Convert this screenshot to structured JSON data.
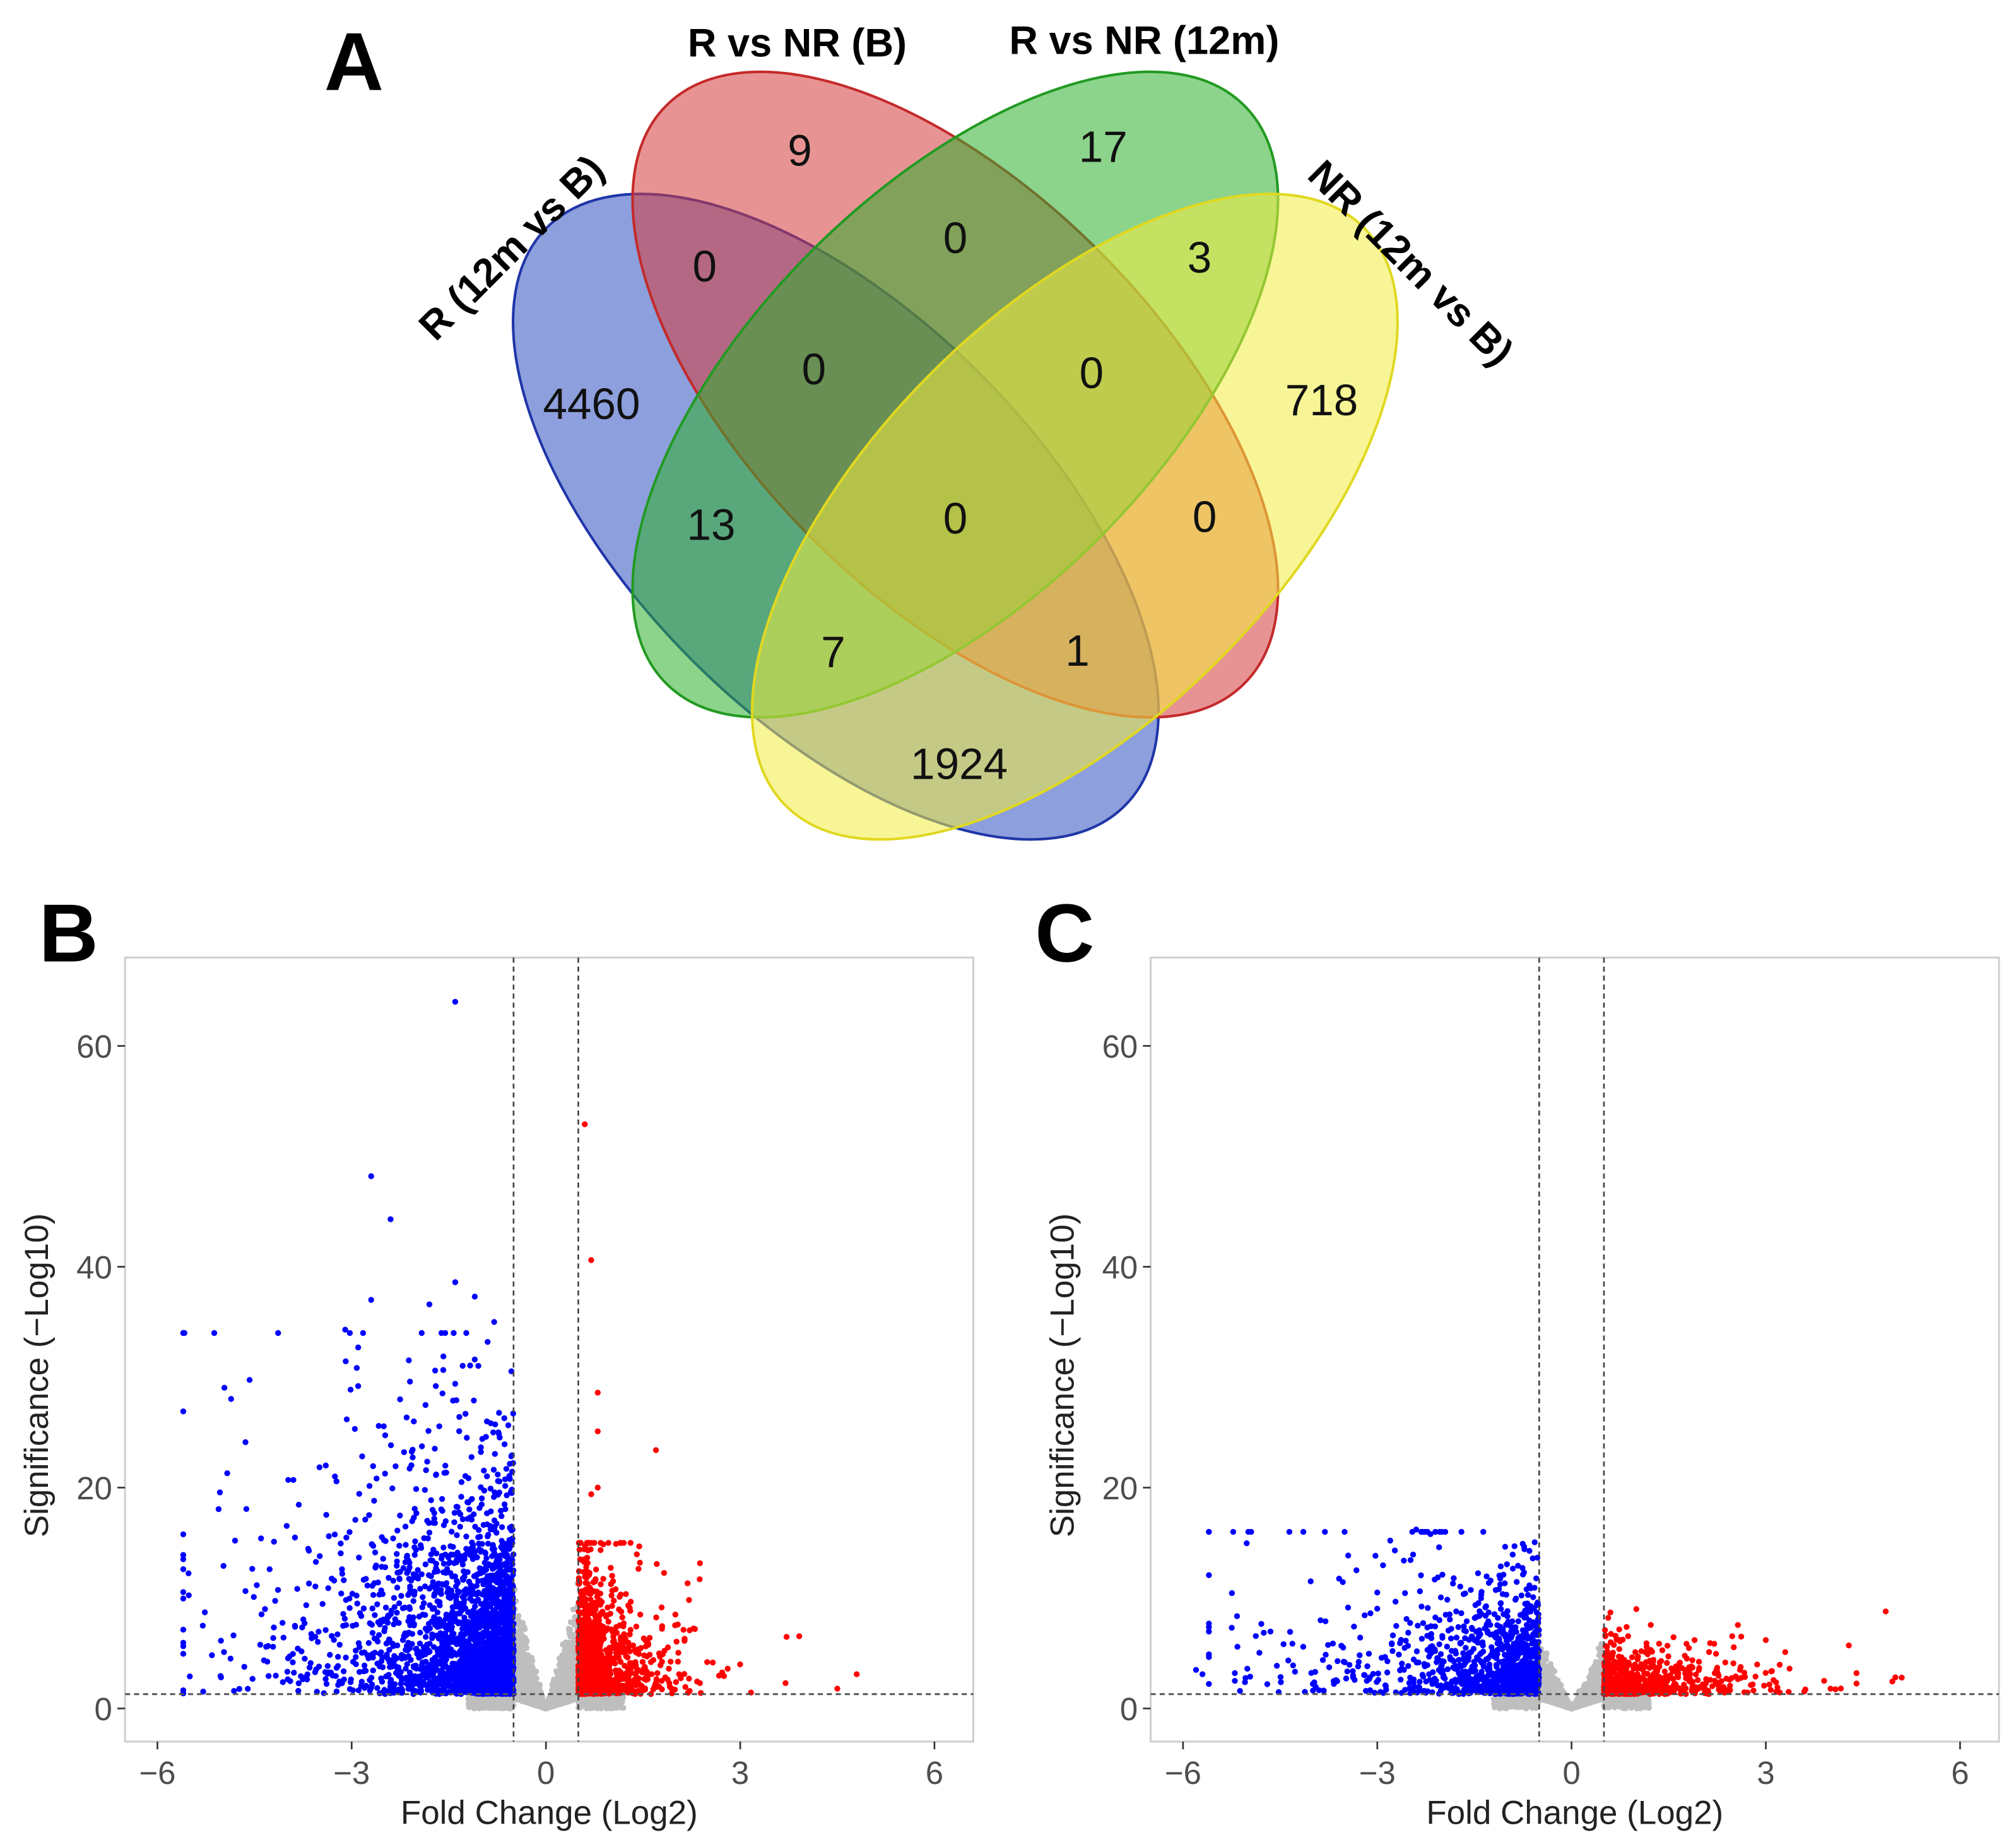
{
  "panels": {
    "a": "A",
    "b": "B",
    "c": "C"
  },
  "venn": {
    "sets": [
      {
        "name": "R (12m vs B)",
        "color": "#3050c0"
      },
      {
        "name": "R vs NR (B)",
        "color": "#d63a3a"
      },
      {
        "name": "R vs NR (12m)",
        "color": "#2eae2e"
      },
      {
        "name": "NR (12m vs B)",
        "color": "#f2ec40"
      }
    ],
    "regions": [
      {
        "sets": "R vs NR (B) only",
        "count": "9"
      },
      {
        "sets": "R vs NR (12m) only",
        "count": "17"
      },
      {
        "sets": "R (12m vs B) & R vs NR (B)",
        "count": "0"
      },
      {
        "sets": "R vs NR (B) & R vs NR (12m)",
        "count": "0"
      },
      {
        "sets": "R vs NR (12m) & NR (12m vs B)",
        "count": "3"
      },
      {
        "sets": "R (12m vs B) & R vs NR (B) & R vs NR (12m)",
        "count": "0"
      },
      {
        "sets": "R vs NR (B) & R vs NR (12m) & NR (12m vs B)",
        "count": "0"
      },
      {
        "sets": "R (12m vs B) only",
        "count": "4460"
      },
      {
        "sets": "NR (12m vs B) only",
        "count": "718"
      },
      {
        "sets": "R (12m vs B) & R vs NR (12m)",
        "count": "13"
      },
      {
        "sets": "all four",
        "count": "0"
      },
      {
        "sets": "R vs NR (B) & NR (12m vs B)",
        "count": "0"
      },
      {
        "sets": "R (12m vs B) & R vs NR (12m) & NR (12m vs B)",
        "count": "7"
      },
      {
        "sets": "R (12m vs B) & R vs NR (B) & NR (12m vs B)",
        "count": "1"
      },
      {
        "sets": "R (12m vs B) & NR (12m vs B)",
        "count": "1924"
      }
    ]
  },
  "chart_data": [
    {
      "type": "scatter",
      "panel": "B",
      "xlabel": "Fold Change (Log2)",
      "ylabel": "Significance (−Log10)",
      "xlim": [
        -6.5,
        6.6
      ],
      "ylim": [
        -3,
        68
      ],
      "xticks": [
        "−6",
        "−3",
        "0",
        "3",
        "6"
      ],
      "xtick_values": [
        -6,
        -3,
        0,
        3,
        6
      ],
      "yticks": [
        "0",
        "20",
        "40",
        "60"
      ],
      "ytick_values": [
        0,
        20,
        40,
        60
      ],
      "fc_threshold": [
        -0.5,
        0.5
      ],
      "sig_threshold": 1.3,
      "colors": {
        "down": "#0000ff",
        "up": "#ff0000",
        "ns": "#bebebe",
        "line": "#555555"
      },
      "outliers_down": [
        [
          -1.4,
          64
        ],
        [
          -2.7,
          48.2
        ],
        [
          -2.4,
          44.3
        ],
        [
          -1.4,
          38.6
        ],
        [
          -1.1,
          37.3
        ],
        [
          -2.7,
          37
        ],
        [
          -1.8,
          36.6
        ],
        [
          -0.8,
          35
        ],
        [
          -3.1,
          34.3
        ],
        [
          -0.9,
          33.2
        ],
        [
          -2.9,
          32.7
        ],
        [
          -1.1,
          31.6
        ],
        [
          -2.1,
          29.6
        ],
        [
          -1.7,
          29.2
        ],
        [
          -1.4,
          29.4
        ],
        [
          -2.9,
          29.2
        ],
        [
          -3.9,
          20.7
        ],
        [
          -4.8,
          15.2
        ],
        [
          -5.3,
          7.5
        ],
        [
          -5.5,
          2.9
        ],
        [
          -4.4,
          15.4
        ],
        [
          -4.2,
          15.1
        ],
        [
          -3.4,
          22
        ]
      ],
      "outliers_up": [
        [
          0.6,
          52.9
        ],
        [
          0.7,
          40.6
        ],
        [
          0.8,
          28.6
        ],
        [
          0.8,
          25.1
        ],
        [
          1.7,
          23.4
        ],
        [
          0.7,
          19.4
        ],
        [
          0.8,
          20
        ],
        [
          2.0,
          8.5
        ],
        [
          3.0,
          4
        ],
        [
          3.7,
          2.3
        ],
        [
          4.5,
          1.8
        ],
        [
          4.8,
          3.1
        ],
        [
          2.3,
          7.2
        ]
      ],
      "bulk_counts": {
        "down": 2600,
        "up": 1300,
        "ns": 2200
      },
      "bulk_spread": {
        "down_x": 1.1,
        "down_y": 4.2,
        "up_x": 0.45,
        "up_y": 3.2
      }
    },
    {
      "type": "scatter",
      "panel": "C",
      "xlabel": "Fold Change (Log2)",
      "ylabel": "Significance (−Log10)",
      "xlim": [
        -6.5,
        6.6
      ],
      "ylim": [
        -3,
        68
      ],
      "xticks": [
        "−6",
        "−3",
        "0",
        "3",
        "6"
      ],
      "xtick_values": [
        -6,
        -3,
        0,
        3,
        6
      ],
      "yticks": [
        "0",
        "20",
        "40",
        "60"
      ],
      "ytick_values": [
        0,
        20,
        40,
        60
      ],
      "fc_threshold": [
        -0.5,
        0.5
      ],
      "sig_threshold": 1.3,
      "colors": {
        "down": "#0000ff",
        "up": "#ff0000",
        "ns": "#bebebe",
        "line": "#555555"
      },
      "outliers_down": [
        [
          -2.4,
          16.2
        ],
        [
          -1.7,
          16
        ],
        [
          -2.8,
          15.2
        ],
        [
          -0.6,
          13.6
        ],
        [
          -5.8,
          3.5
        ],
        [
          -5.7,
          3.1
        ],
        [
          -5.2,
          3.2
        ],
        [
          -5.2,
          2.5
        ],
        [
          -4.7,
          2.2
        ],
        [
          -4.3,
          3.9
        ],
        [
          -3.8,
          7.9
        ],
        [
          -3.0,
          10.5
        ]
      ],
      "outliers_up": [
        [
          1.0,
          9
        ],
        [
          0.6,
          8.7
        ],
        [
          1.9,
          6.2
        ],
        [
          3.0,
          6.2
        ],
        [
          3.3,
          5.1
        ],
        [
          4.4,
          3.2
        ],
        [
          5.1,
          2.8
        ],
        [
          3.9,
          2.5
        ],
        [
          2.6,
          3.5
        ],
        [
          4.0,
          1.8
        ]
      ],
      "bulk_counts": {
        "down": 1100,
        "up": 650,
        "ns": 1800
      },
      "bulk_spread": {
        "down_x": 1.2,
        "down_y": 2.4,
        "up_x": 0.9,
        "up_y": 1.4
      }
    }
  ]
}
